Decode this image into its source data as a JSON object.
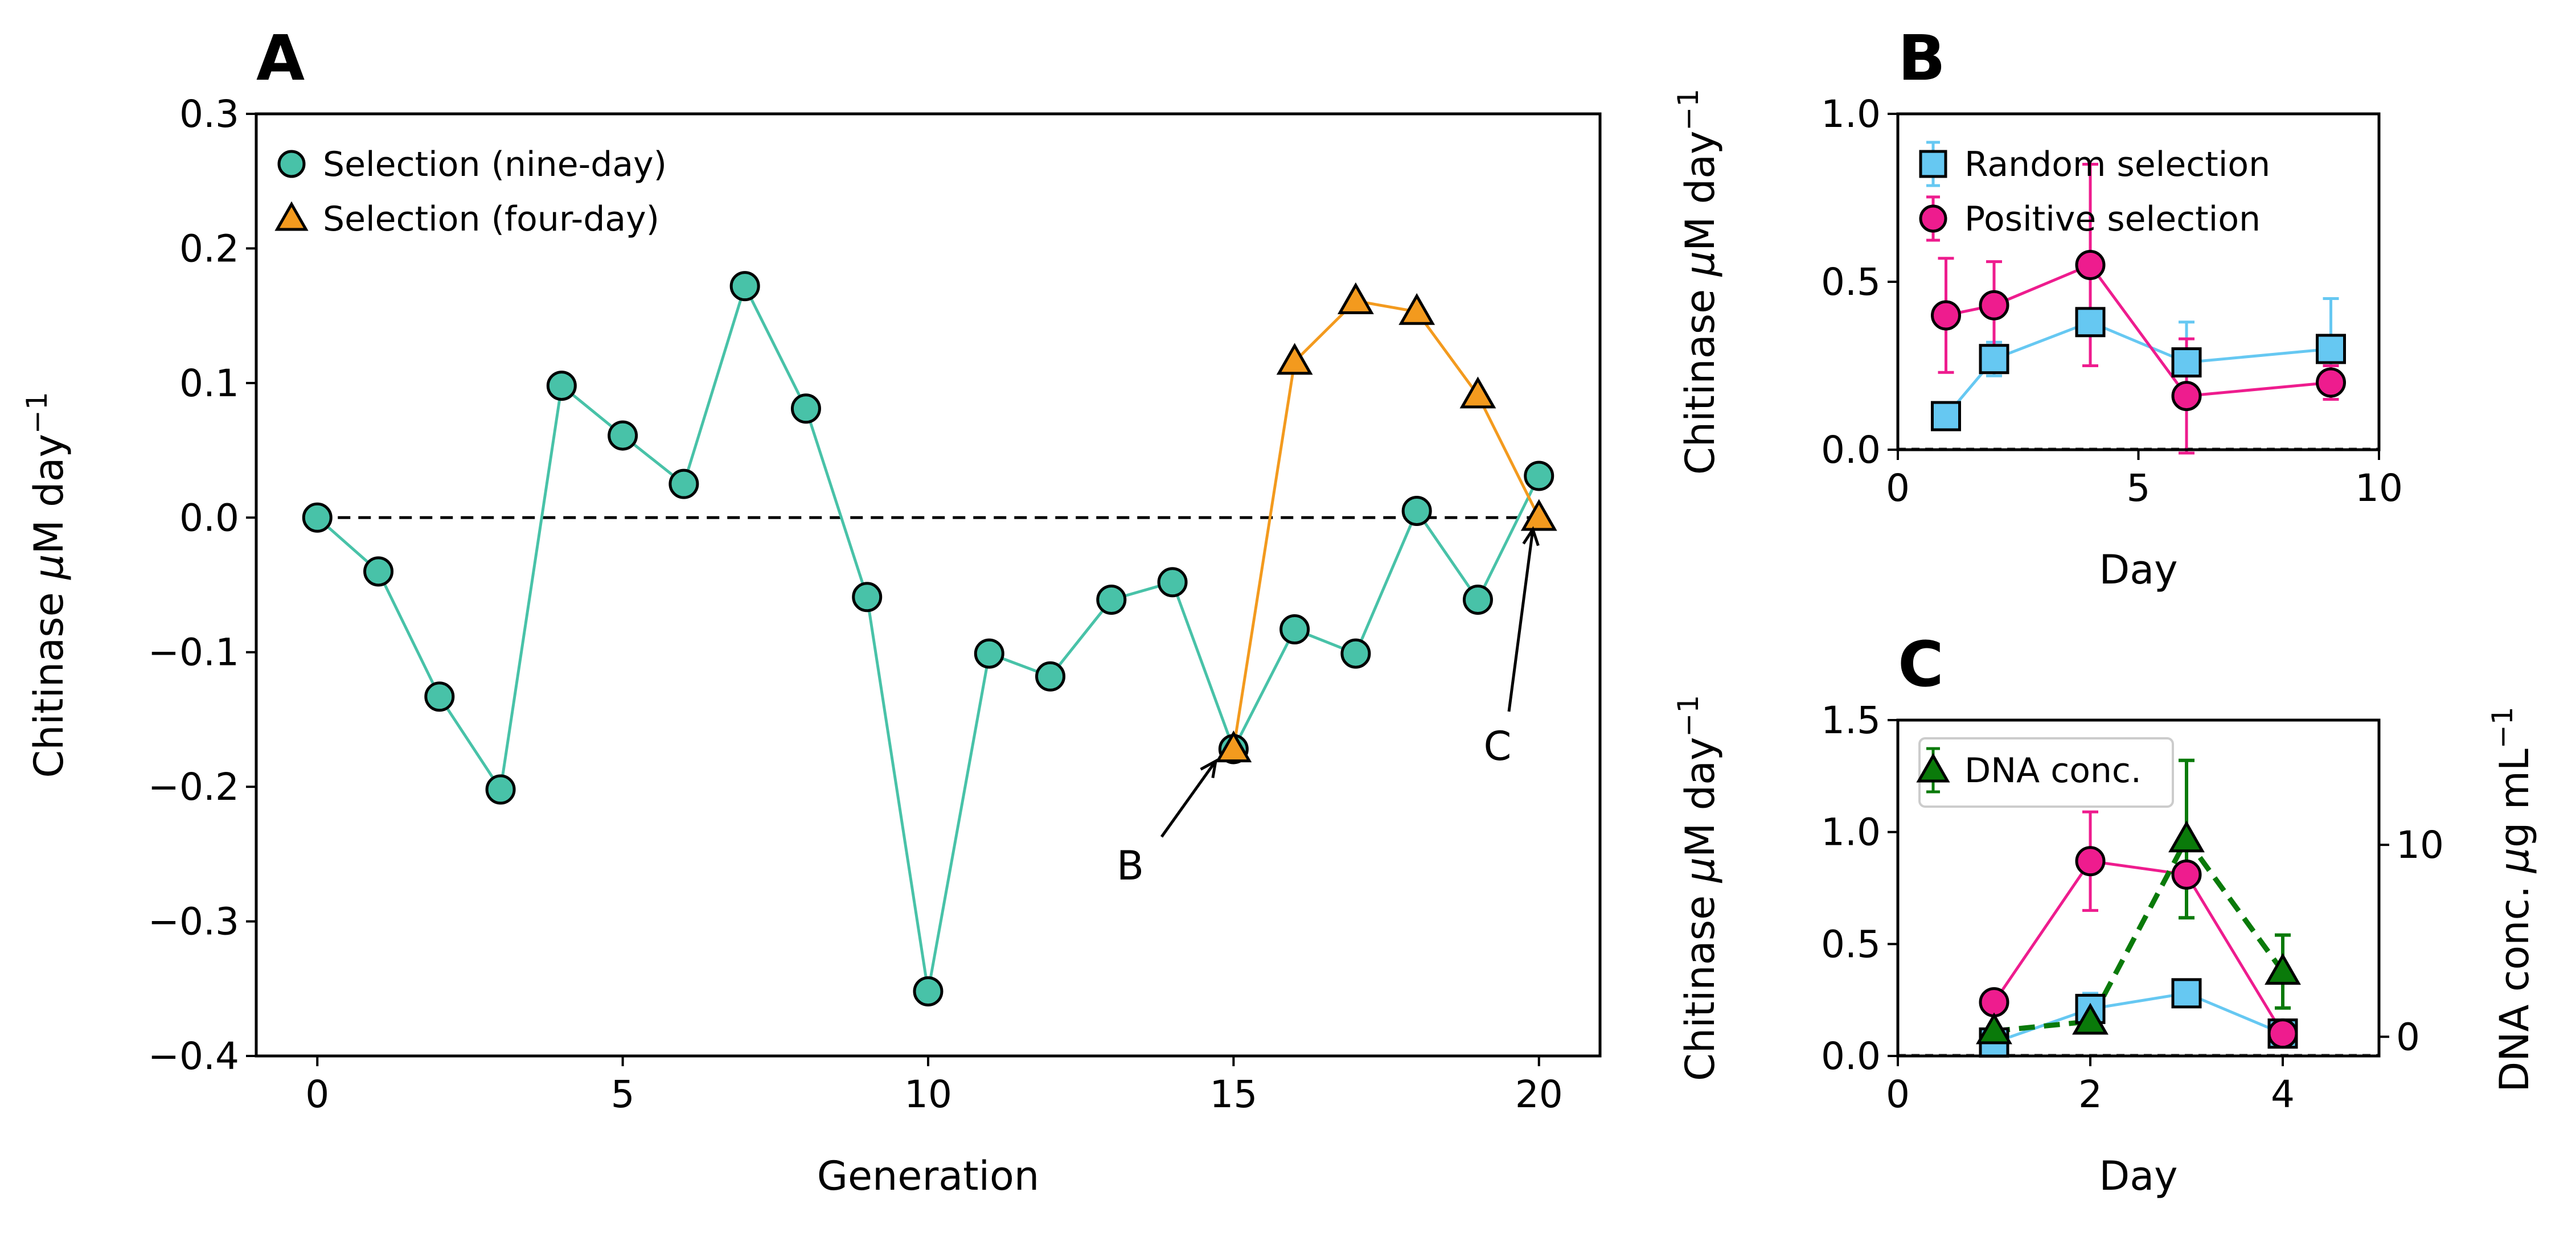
{
  "colors": {
    "teal": "#48c2a8",
    "orange": "#f39a1e",
    "sky": "#66c8f2",
    "magenta": "#ee1c8e",
    "green": "#0a7a0a",
    "black": "#000000"
  },
  "chart_data": [
    {
      "panel": "A",
      "type": "line",
      "xlabel": "Generation",
      "ylabel": "Chitinase μM day⁻¹",
      "xlim": [
        -1,
        21
      ],
      "ylim": [
        -0.4,
        0.3
      ],
      "xticks": [
        0,
        5,
        10,
        15,
        20
      ],
      "xtick_labels": [
        "0",
        "5",
        "10",
        "15",
        "20"
      ],
      "yticks": [
        -0.4,
        -0.3,
        -0.2,
        -0.1,
        0.0,
        0.1,
        0.2,
        0.3
      ],
      "ytick_labels": [
        "−0.4",
        "−0.3",
        "−0.2",
        "−0.1",
        "0.0",
        "0.1",
        "0.2",
        "0.3"
      ],
      "legend_position": "top-left",
      "series": [
        {
          "name": "Selection (nine-day)",
          "marker": "circle",
          "color": "teal",
          "x": [
            0,
            1,
            2,
            3,
            4,
            5,
            6,
            7,
            8,
            9,
            10,
            11,
            12,
            13,
            14,
            15,
            16,
            17,
            18,
            19,
            20
          ],
          "y": [
            0.0,
            -0.04,
            -0.133,
            -0.202,
            0.098,
            0.061,
            0.025,
            0.172,
            0.081,
            -0.059,
            -0.352,
            -0.101,
            -0.118,
            -0.061,
            -0.048,
            -0.172,
            -0.083,
            -0.101,
            0.005,
            -0.061,
            0.031
          ]
        },
        {
          "name": "Selection (four-day)",
          "marker": "triangle",
          "color": "orange",
          "x": [
            15,
            16,
            17,
            18,
            19,
            20
          ],
          "y": [
            -0.172,
            0.116,
            0.161,
            0.153,
            0.091,
            0.0
          ]
        }
      ],
      "reference_line": 0.0,
      "annotations": [
        {
          "text": "B",
          "target": [
            15,
            -0.172
          ]
        },
        {
          "text": "C",
          "target": [
            20,
            0.0
          ]
        }
      ]
    },
    {
      "panel": "B",
      "type": "line",
      "xlabel": "Day",
      "ylabel": "Chitinase μM day⁻¹",
      "xlim": [
        0,
        10
      ],
      "ylim": [
        0.0,
        1.0
      ],
      "xticks": [
        0,
        5,
        10
      ],
      "xtick_labels": [
        "0",
        "5",
        "10"
      ],
      "yticks": [
        0.0,
        0.5,
        1.0
      ],
      "ytick_labels": [
        "0.0",
        "0.5",
        "1.0"
      ],
      "legend_position": "top-left",
      "series": [
        {
          "name": "Random selection",
          "marker": "square",
          "color": "sky",
          "x": [
            1,
            2,
            4,
            6,
            9
          ],
          "y": [
            0.1,
            0.27,
            0.38,
            0.26,
            0.3
          ],
          "err": [
            0.0,
            0.05,
            0.0,
            0.12,
            0.15
          ]
        },
        {
          "name": "Positive selection",
          "marker": "circle",
          "color": "magenta",
          "x": [
            1,
            2,
            4,
            6,
            9
          ],
          "y": [
            0.4,
            0.43,
            0.55,
            0.16,
            0.2
          ],
          "err": [
            0.17,
            0.13,
            0.3,
            0.17,
            0.05
          ]
        }
      ]
    },
    {
      "panel": "C",
      "type": "line",
      "xlabel": "Day",
      "ylabel": "Chitinase μM day⁻¹",
      "ylabel_right": "DNA conc. μg mL⁻¹",
      "xlim": [
        0,
        5
      ],
      "ylim": [
        0.0,
        1.5
      ],
      "ylim_right": [
        -1,
        16.5
      ],
      "xticks": [
        0,
        2,
        4
      ],
      "xtick_labels": [
        "0",
        "2",
        "4"
      ],
      "yticks": [
        0.0,
        0.5,
        1.0,
        1.5
      ],
      "ytick_labels": [
        "0.0",
        "0.5",
        "1.0",
        "1.5"
      ],
      "yticks_right": [
        0,
        10
      ],
      "ytick_labels_right": [
        "0",
        "10"
      ],
      "legend_position": "top-left",
      "series": [
        {
          "name": "",
          "marker": "square",
          "color": "sky",
          "x": [
            1,
            2,
            3,
            4
          ],
          "y": [
            0.06,
            0.21,
            0.28,
            0.1
          ],
          "err": [
            0.02,
            0.07,
            0.03,
            0.03
          ]
        },
        {
          "name": "",
          "marker": "circle",
          "color": "magenta",
          "x": [
            1,
            2,
            3,
            4
          ],
          "y": [
            0.24,
            0.87,
            0.81,
            0.1
          ],
          "err": [
            0.0,
            0.22,
            0.0,
            0.0
          ]
        },
        {
          "name": "DNA conc.",
          "marker": "triangle",
          "color": "green",
          "axis": "right",
          "dashed": true,
          "x": [
            1,
            2,
            3,
            4
          ],
          "y": [
            0.3,
            0.8,
            10.3,
            3.4
          ],
          "err": [
            0.0,
            0.0,
            4.1,
            1.9
          ]
        }
      ]
    }
  ]
}
